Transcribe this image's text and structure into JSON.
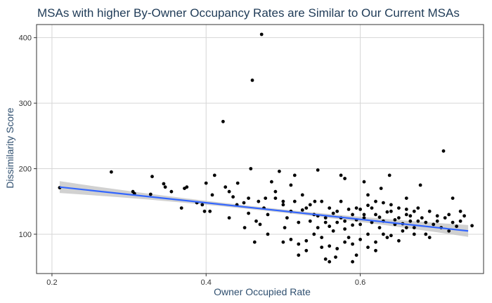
{
  "chart_data": {
    "type": "scatter",
    "title": "MSAs with higher By-Owner Occupancy Rates are Similar to Our Current MSAs",
    "xlabel": "Owner Occupied Rate",
    "ylabel": "Dissimilarity Score",
    "xlim": [
      0.18,
      0.76
    ],
    "ylim": [
      40,
      420
    ],
    "x_ticks": [
      0.2,
      0.4,
      0.6
    ],
    "y_ticks": [
      100,
      200,
      300,
      400
    ],
    "x_tick_labels": [
      "0.2",
      "0.4",
      "0.6"
    ],
    "y_tick_labels": [
      "100",
      "200",
      "300",
      "400"
    ],
    "grid": true,
    "legend": "none",
    "colors": {
      "points": "#000000",
      "trend": "#3366ff",
      "band": "#bdbdbd",
      "grid": "#d6d6d6",
      "title": "#1f3b57"
    },
    "trend_line": {
      "method": "linear fit with confidence band",
      "x": [
        0.21,
        0.74
      ],
      "y": [
        172,
        105
      ],
      "band_halfwidth_ends": 9,
      "band_halfwidth_center": 2.5
    },
    "series": [
      {
        "points": [
          [
            0.21,
            171
          ],
          [
            0.277,
            195
          ],
          [
            0.305,
            165
          ],
          [
            0.307,
            162
          ],
          [
            0.328,
            161
          ],
          [
            0.33,
            188
          ],
          [
            0.345,
            177
          ],
          [
            0.347,
            172
          ],
          [
            0.355,
            165
          ],
          [
            0.368,
            140
          ],
          [
            0.372,
            170
          ],
          [
            0.375,
            172
          ],
          [
            0.388,
            148
          ],
          [
            0.395,
            145
          ],
          [
            0.398,
            135
          ],
          [
            0.4,
            178
          ],
          [
            0.405,
            135
          ],
          [
            0.408,
            160
          ],
          [
            0.411,
            190
          ],
          [
            0.422,
            272
          ],
          [
            0.425,
            172
          ],
          [
            0.43,
            165
          ],
          [
            0.435,
            157
          ],
          [
            0.441,
            178
          ],
          [
            0.449,
            148
          ],
          [
            0.455,
            155
          ],
          [
            0.458,
            200
          ],
          [
            0.46,
            335
          ],
          [
            0.463,
            88
          ],
          [
            0.468,
            150
          ],
          [
            0.472,
            405
          ],
          [
            0.477,
            155
          ],
          [
            0.48,
            130
          ],
          [
            0.485,
            180
          ],
          [
            0.49,
            165
          ],
          [
            0.495,
            196
          ],
          [
            0.5,
            150
          ],
          [
            0.502,
            110
          ],
          [
            0.51,
            175
          ],
          [
            0.515,
            190
          ],
          [
            0.52,
            68
          ],
          [
            0.53,
            75
          ],
          [
            0.541,
            150
          ],
          [
            0.545,
            198
          ],
          [
            0.55,
            80
          ],
          [
            0.555,
            62
          ],
          [
            0.56,
            58
          ],
          [
            0.568,
            65
          ],
          [
            0.575,
            190
          ],
          [
            0.58,
            185
          ],
          [
            0.59,
            58
          ],
          [
            0.595,
            68
          ],
          [
            0.605,
            180
          ],
          [
            0.61,
            160
          ],
          [
            0.62,
            75
          ],
          [
            0.627,
            170
          ],
          [
            0.638,
            190
          ],
          [
            0.66,
            155
          ],
          [
            0.678,
            175
          ],
          [
            0.69,
            95
          ],
          [
            0.7,
            120
          ],
          [
            0.708,
            227
          ],
          [
            0.715,
            130
          ],
          [
            0.72,
            155
          ],
          [
            0.73,
            135
          ],
          [
            0.735,
            128
          ],
          [
            0.745,
            113
          ],
          [
            0.43,
            125
          ],
          [
            0.44,
            145
          ],
          [
            0.45,
            110
          ],
          [
            0.455,
            132
          ],
          [
            0.465,
            120
          ],
          [
            0.47,
            115
          ],
          [
            0.475,
            140
          ],
          [
            0.48,
            100
          ],
          [
            0.49,
            155
          ],
          [
            0.5,
            145
          ],
          [
            0.505,
            125
          ],
          [
            0.51,
            135
          ],
          [
            0.515,
            150
          ],
          [
            0.52,
            118
          ],
          [
            0.525,
            160
          ],
          [
            0.53,
            140
          ],
          [
            0.535,
            120
          ],
          [
            0.54,
            130
          ],
          [
            0.545,
            110
          ],
          [
            0.55,
            150
          ],
          [
            0.555,
            125
          ],
          [
            0.56,
            140
          ],
          [
            0.565,
            105
          ],
          [
            0.57,
            135
          ],
          [
            0.575,
            150
          ],
          [
            0.58,
            120
          ],
          [
            0.585,
            95
          ],
          [
            0.59,
            130
          ],
          [
            0.595,
            140
          ],
          [
            0.6,
            115
          ],
          [
            0.605,
            125
          ],
          [
            0.61,
            100
          ],
          [
            0.615,
            140
          ],
          [
            0.62,
            130
          ],
          [
            0.625,
            110
          ],
          [
            0.63,
            120
          ],
          [
            0.635,
            95
          ],
          [
            0.64,
            135
          ],
          [
            0.645,
            115
          ],
          [
            0.65,
            125
          ],
          [
            0.655,
            105
          ],
          [
            0.66,
            130
          ],
          [
            0.665,
            120
          ],
          [
            0.67,
            110
          ],
          [
            0.675,
            140
          ],
          [
            0.68,
            125
          ],
          [
            0.685,
            100
          ],
          [
            0.69,
            135
          ],
          [
            0.695,
            115
          ],
          [
            0.7,
            128
          ],
          [
            0.705,
            110
          ],
          [
            0.71,
            125
          ],
          [
            0.715,
            105
          ],
          [
            0.72,
            118
          ],
          [
            0.725,
            112
          ],
          [
            0.73,
            120
          ],
          [
            0.5,
            88
          ],
          [
            0.51,
            92
          ],
          [
            0.52,
            85
          ],
          [
            0.53,
            90
          ],
          [
            0.54,
            100
          ],
          [
            0.55,
            95
          ],
          [
            0.56,
            82
          ],
          [
            0.57,
            78
          ],
          [
            0.58,
            88
          ],
          [
            0.59,
            85
          ],
          [
            0.6,
            92
          ],
          [
            0.61,
            80
          ],
          [
            0.62,
            88
          ],
          [
            0.63,
            100
          ],
          [
            0.64,
            98
          ],
          [
            0.65,
            90
          ],
          [
            0.66,
            110
          ],
          [
            0.67,
            100
          ],
          [
            0.525,
            137
          ],
          [
            0.535,
            145
          ],
          [
            0.545,
            128
          ],
          [
            0.555,
            118
          ],
          [
            0.565,
            132
          ],
          [
            0.575,
            125
          ],
          [
            0.585,
            138
          ],
          [
            0.595,
            122
          ],
          [
            0.605,
            130
          ],
          [
            0.615,
            118
          ],
          [
            0.625,
            126
          ],
          [
            0.635,
            134
          ],
          [
            0.645,
            122
          ],
          [
            0.655,
            116
          ],
          [
            0.665,
            128
          ],
          [
            0.675,
            120
          ],
          [
            0.685,
            118
          ],
          [
            0.56,
            112
          ],
          [
            0.57,
            118
          ],
          [
            0.58,
            108
          ],
          [
            0.59,
            114
          ],
          [
            0.6,
            138
          ],
          [
            0.61,
            144
          ],
          [
            0.62,
            150
          ],
          [
            0.63,
            148
          ],
          [
            0.64,
            145
          ],
          [
            0.65,
            140
          ],
          [
            0.66,
            138
          ],
          [
            0.67,
            135
          ]
        ]
      }
    ]
  }
}
